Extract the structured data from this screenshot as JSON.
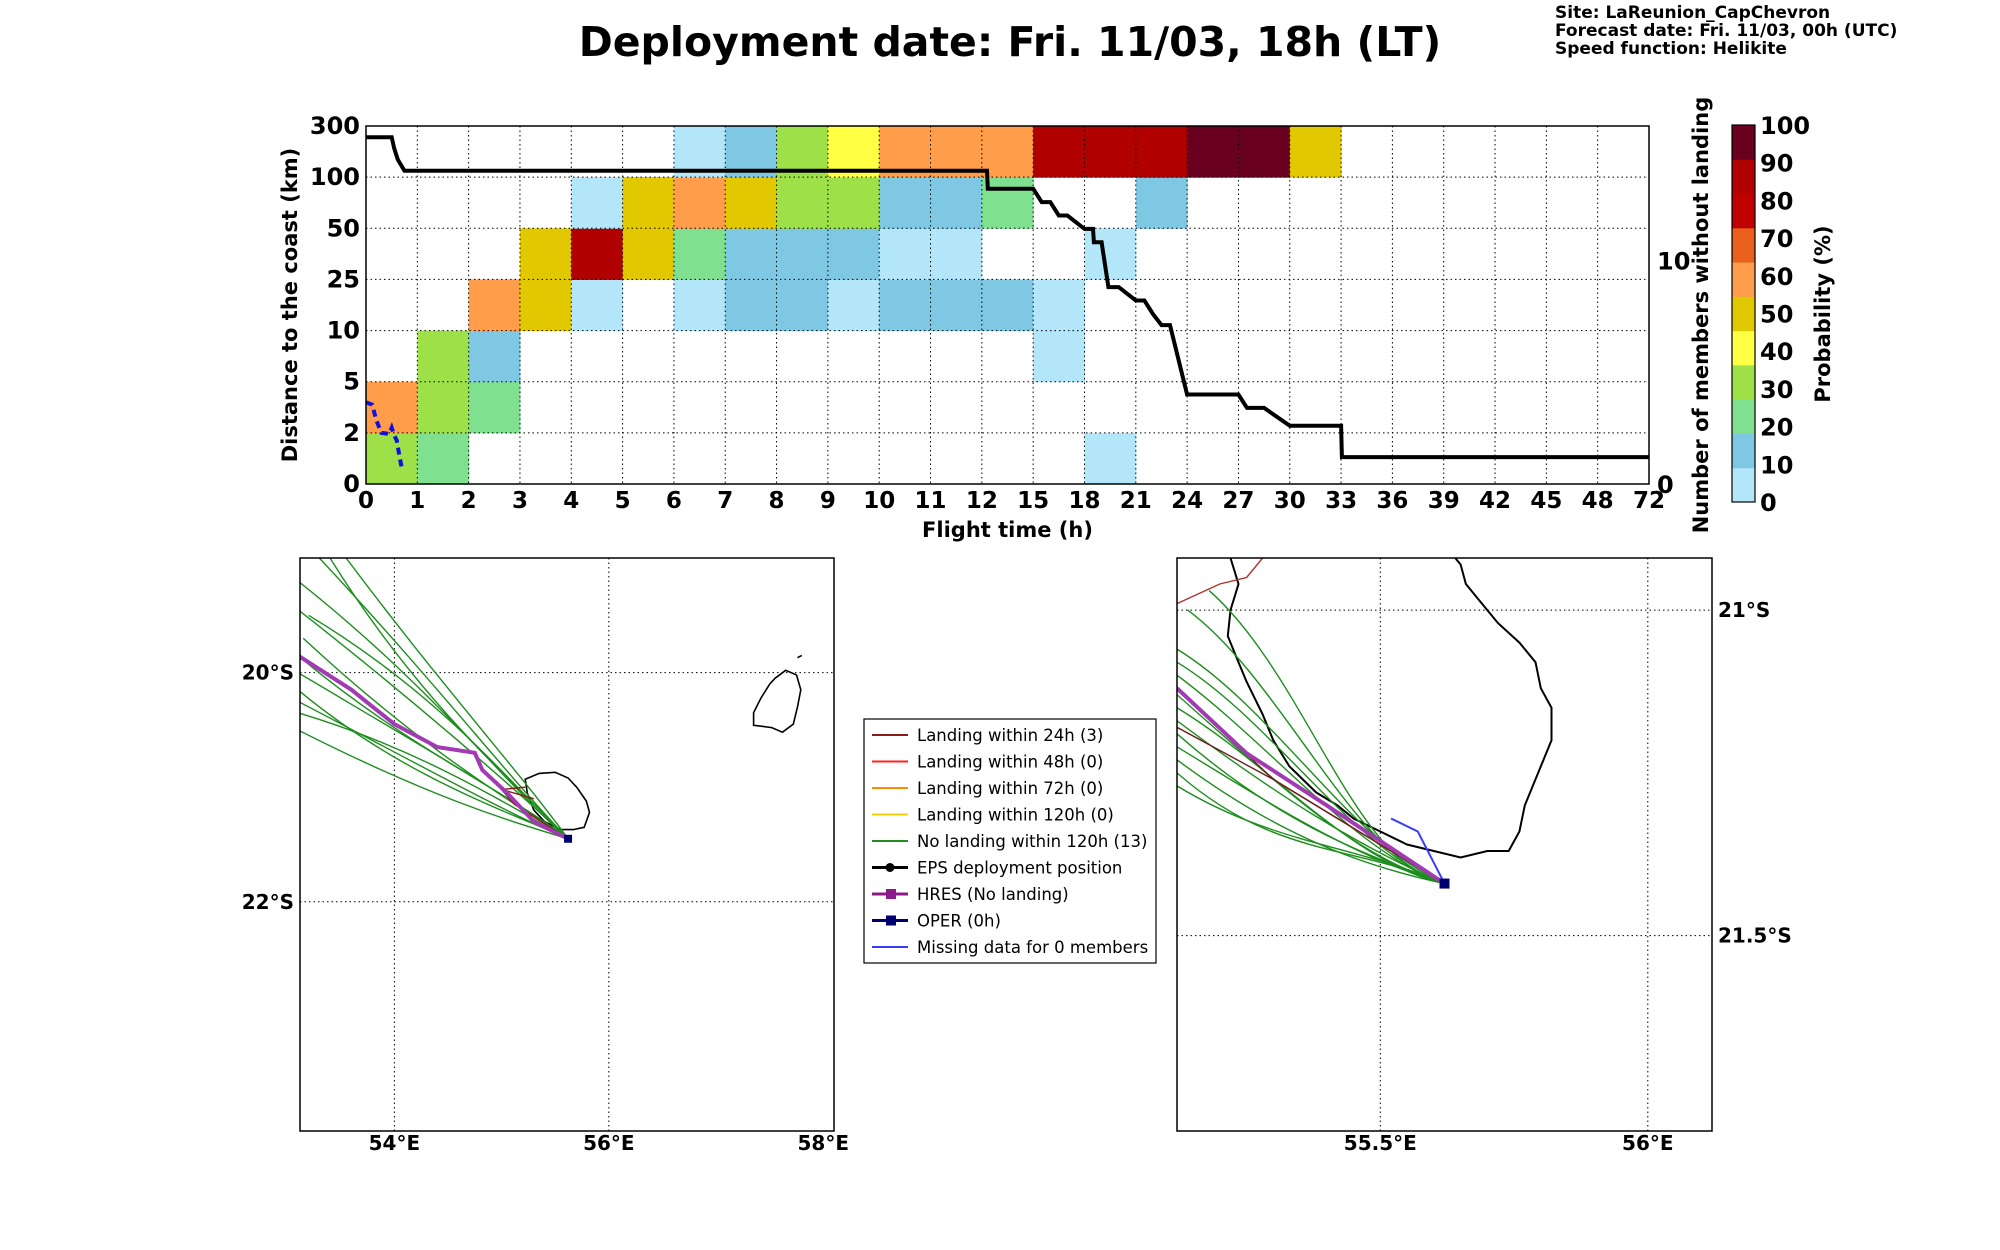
{
  "header": {
    "title": "Deployment date: Fri. 11/03, 18h (LT)",
    "site": "Site: LaReunion_CapChevron",
    "forecast": "Forecast date: Fri. 11/03, 00h (UTC)",
    "speed": "Speed function: Helikite"
  },
  "chart_data": [
    {
      "type": "heatmap",
      "xlabel": "Flight time (h)",
      "ylabel": "Distance to the coast (km)",
      "y2label": "Number of members without landing",
      "x_ticks": [
        "0",
        "1",
        "2",
        "3",
        "4",
        "5",
        "6",
        "7",
        "8",
        "9",
        "10",
        "11",
        "12",
        "15",
        "18",
        "21",
        "24",
        "27",
        "30",
        "33",
        "36",
        "39",
        "42",
        "45",
        "48",
        "72"
      ],
      "y_ticks": [
        "0",
        "2",
        "5",
        "10",
        "25",
        "50",
        "100",
        "300"
      ],
      "y2_ticks": [
        "0",
        "10"
      ],
      "y2lim": [
        0,
        16
      ],
      "grid": true,
      "colorbar": {
        "label": "Probability (%)",
        "ticks": [
          "0",
          "10",
          "20",
          "30",
          "40",
          "50",
          "60",
          "70",
          "80",
          "90",
          "100"
        ],
        "colors": [
          "#b4e6fa",
          "#7ec8e3",
          "#7fe090",
          "#9de048",
          "#ffff44",
          "#e2c800",
          "#ff9d4a",
          "#e8601c",
          "#c00000",
          "#b00000",
          "#6a0020"
        ]
      },
      "cells": [
        {
          "x": 0,
          "y": 0,
          "p": 30
        },
        {
          "x": 1,
          "y": 0,
          "p": 20
        },
        {
          "x": 14,
          "y": 0,
          "p": 0
        },
        {
          "x": 0,
          "y": 1,
          "p": 60
        },
        {
          "x": 1,
          "y": 1,
          "p": 30
        },
        {
          "x": 2,
          "y": 1,
          "p": 20
        },
        {
          "x": 1,
          "y": 2,
          "p": 30
        },
        {
          "x": 2,
          "y": 2,
          "p": 10
        },
        {
          "x": 13,
          "y": 2,
          "p": 0
        },
        {
          "x": 2,
          "y": 3,
          "p": 60
        },
        {
          "x": 3,
          "y": 3,
          "p": 50
        },
        {
          "x": 4,
          "y": 3,
          "p": 0
        },
        {
          "x": 6,
          "y": 3,
          "p": 0
        },
        {
          "x": 7,
          "y": 3,
          "p": 10
        },
        {
          "x": 8,
          "y": 3,
          "p": 10
        },
        {
          "x": 9,
          "y": 3,
          "p": 0
        },
        {
          "x": 10,
          "y": 3,
          "p": 10
        },
        {
          "x": 11,
          "y": 3,
          "p": 10
        },
        {
          "x": 12,
          "y": 3,
          "p": 10
        },
        {
          "x": 13,
          "y": 3,
          "p": 0
        },
        {
          "x": 3,
          "y": 4,
          "p": 50
        },
        {
          "x": 4,
          "y": 4,
          "p": 90
        },
        {
          "x": 5,
          "y": 4,
          "p": 50
        },
        {
          "x": 6,
          "y": 4,
          "p": 20
        },
        {
          "x": 7,
          "y": 4,
          "p": 10
        },
        {
          "x": 8,
          "y": 4,
          "p": 10
        },
        {
          "x": 9,
          "y": 4,
          "p": 10
        },
        {
          "x": 10,
          "y": 4,
          "p": 0
        },
        {
          "x": 11,
          "y": 4,
          "p": 0
        },
        {
          "x": 14,
          "y": 4,
          "p": 0
        },
        {
          "x": 4,
          "y": 5,
          "p": 0
        },
        {
          "x": 5,
          "y": 5,
          "p": 50
        },
        {
          "x": 6,
          "y": 5,
          "p": 60
        },
        {
          "x": 7,
          "y": 5,
          "p": 50
        },
        {
          "x": 8,
          "y": 5,
          "p": 30
        },
        {
          "x": 9,
          "y": 5,
          "p": 30
        },
        {
          "x": 10,
          "y": 5,
          "p": 10
        },
        {
          "x": 11,
          "y": 5,
          "p": 10
        },
        {
          "x": 12,
          "y": 5,
          "p": 20
        },
        {
          "x": 15,
          "y": 5,
          "p": 10
        },
        {
          "x": 6,
          "y": 6,
          "p": 0
        },
        {
          "x": 7,
          "y": 6,
          "p": 10
        },
        {
          "x": 8,
          "y": 6,
          "p": 30
        },
        {
          "x": 9,
          "y": 6,
          "p": 40
        },
        {
          "x": 10,
          "y": 6,
          "p": 60
        },
        {
          "x": 11,
          "y": 6,
          "p": 60
        },
        {
          "x": 12,
          "y": 6,
          "p": 60
        },
        {
          "x": 13,
          "y": 6,
          "p": 90
        },
        {
          "x": 14,
          "y": 6,
          "p": 90
        },
        {
          "x": 15,
          "y": 6,
          "p": 90
        },
        {
          "x": 16,
          "y": 6,
          "p": 100
        },
        {
          "x": 17,
          "y": 6,
          "p": 100
        },
        {
          "x": 18,
          "y": 6,
          "p": 50
        }
      ],
      "series": [
        {
          "x": [
            0,
            0.5,
            0.55,
            0.62,
            0.75,
            12.3,
            12.35,
            15,
            15.5,
            16,
            16.5,
            17,
            18,
            18.5,
            18.55,
            19,
            19.1,
            19.2,
            19.3,
            19.4,
            20,
            21,
            21.5,
            22,
            22.5,
            23,
            24,
            27,
            27.5,
            28.5,
            30,
            33,
            33.05,
            72
          ],
          "y": [
            15.5,
            15.5,
            15.0,
            14.5,
            14.0,
            14.0,
            13.2,
            13.2,
            12.6,
            12.6,
            12.0,
            12.0,
            11.4,
            11.4,
            10.8,
            10.8,
            10.3,
            9.8,
            9.3,
            8.8,
            8.8,
            8.2,
            8.2,
            7.6,
            7.1,
            7.1,
            4.0,
            4.0,
            3.4,
            3.4,
            2.6,
            2.6,
            1.2,
            1.2
          ]
        },
        {
          "x": [
            0,
            0.12,
            0.2,
            0.3,
            0.45,
            0.5,
            0.55,
            0.6,
            0.65,
            0.7
          ],
          "y": [
            1.6,
            1.55,
            1.25,
            1.0,
            0.98,
            1.1,
            0.95,
            0.85,
            0.55,
            0.3
          ]
        }
      ]
    },
    {
      "type": "map",
      "x_ticks": [
        "54°E",
        "56°E",
        "58°E"
      ],
      "y_ticks": [
        "20°S",
        "22°S"
      ],
      "xlim": [
        53.1,
        58.1
      ],
      "ylim": [
        -24.0,
        -19.0
      ]
    },
    {
      "type": "map",
      "x_ticks": [
        "55.5°E",
        "56°E"
      ],
      "y_ticks": [
        "21°S",
        "21.5°S"
      ],
      "xlim": [
        55.12,
        56.12
      ],
      "ylim": [
        -21.8,
        -20.92
      ]
    }
  ],
  "legend": {
    "items": [
      {
        "label": "Landing within 24h (3)",
        "color": "#8b1a1a"
      },
      {
        "label": "Landing within 48h (0)",
        "color": "#ff2020"
      },
      {
        "label": "Landing within 72h (0)",
        "color": "#ff8c00"
      },
      {
        "label": "Landing within 120h (0)",
        "color": "#f0d000"
      },
      {
        "label": "No landing within 120h (13)",
        "color": "#228b22"
      },
      {
        "label": "EPS deployment position",
        "color": "#000000"
      },
      {
        "label": "HRES (No landing)",
        "color": "#8b1a8b"
      },
      {
        "label": "OPER (0h)",
        "color": "#00006e"
      },
      {
        "label": "Missing data for 0 members",
        "color": "#3b3bff"
      }
    ]
  }
}
